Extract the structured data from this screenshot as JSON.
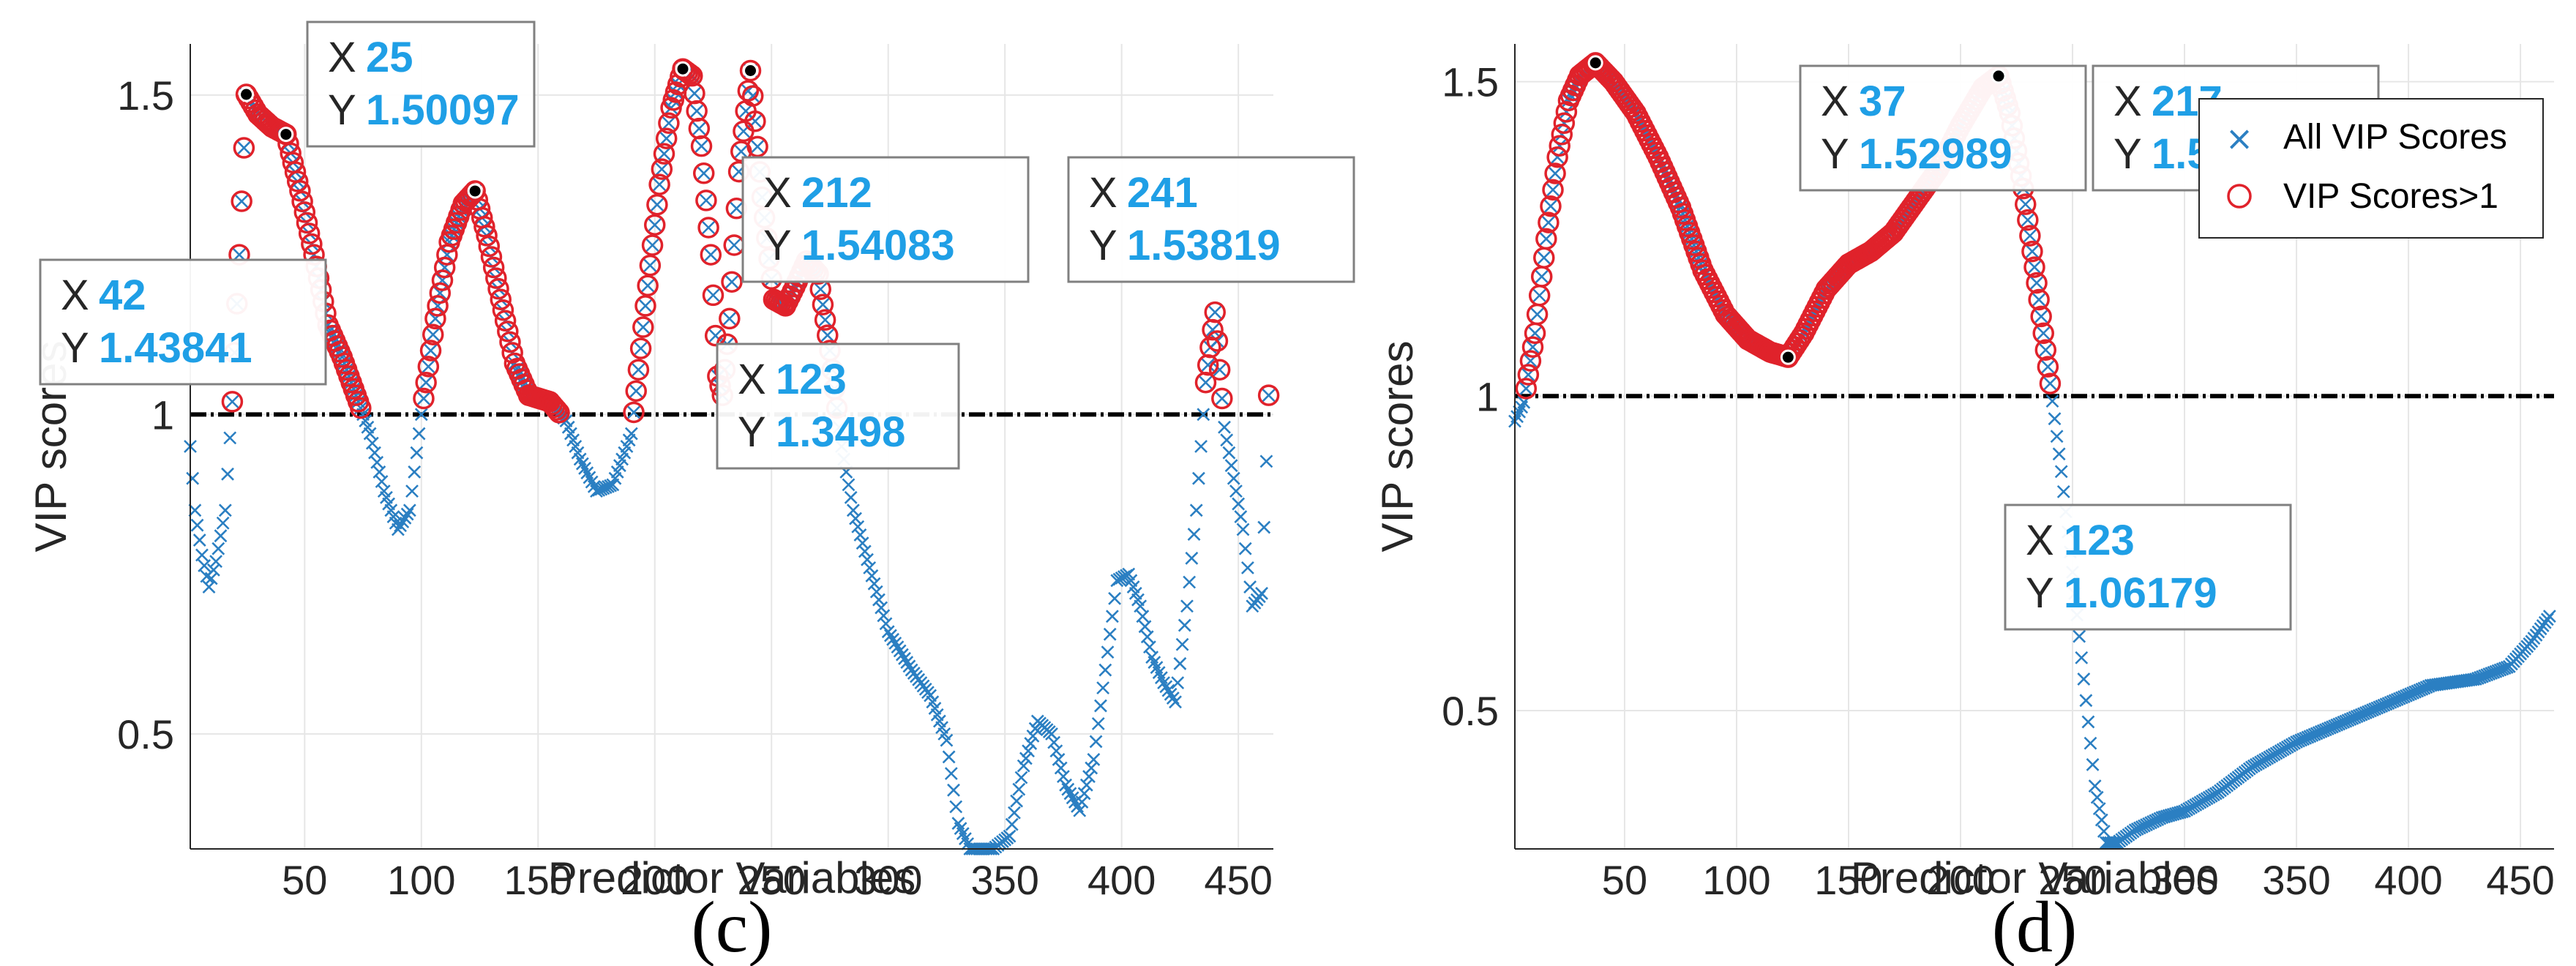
{
  "colors": {
    "all_marker": "#2b7fc2",
    "above_marker": "#e0222b",
    "threshold": "#000000",
    "datatip_value": "#1f9fe6",
    "grid": "#e6e6e6"
  },
  "chart_data": [
    {
      "panel": "(c)",
      "type": "scatter",
      "xlabel": "Predictor Variables",
      "ylabel": "VIP scores",
      "xlim": [
        1,
        465
      ],
      "ylim": [
        0.32,
        1.58
      ],
      "xticks": [
        50,
        100,
        150,
        200,
        250,
        300,
        350,
        400,
        450
      ],
      "yticks": [
        0.5,
        1,
        1.5
      ],
      "threshold": 1,
      "grid": true,
      "legend": null,
      "curve_knots": [
        [
          1,
          0.95
        ],
        [
          3,
          0.85
        ],
        [
          6,
          0.78
        ],
        [
          9,
          0.73
        ],
        [
          12,
          0.77
        ],
        [
          16,
          0.85
        ],
        [
          19,
          1.02
        ],
        [
          22,
          1.25
        ],
        [
          25,
          1.50097
        ],
        [
          30,
          1.47
        ],
        [
          36,
          1.45
        ],
        [
          42,
          1.43841
        ],
        [
          48,
          1.35
        ],
        [
          54,
          1.25
        ],
        [
          60,
          1.14
        ],
        [
          66,
          1.09
        ],
        [
          72,
          1.03
        ],
        [
          78,
          0.97
        ],
        [
          84,
          0.88
        ],
        [
          90,
          0.82
        ],
        [
          95,
          0.85
        ],
        [
          100,
          1.0
        ],
        [
          106,
          1.15
        ],
        [
          112,
          1.27
        ],
        [
          118,
          1.33
        ],
        [
          123,
          1.3498
        ],
        [
          128,
          1.28
        ],
        [
          134,
          1.18
        ],
        [
          140,
          1.08
        ],
        [
          146,
          1.03
        ],
        [
          155,
          1.02
        ],
        [
          162,
          0.99
        ],
        [
          168,
          0.93
        ],
        [
          175,
          0.88
        ],
        [
          182,
          0.89
        ],
        [
          190,
          0.97
        ],
        [
          196,
          1.17
        ],
        [
          202,
          1.36
        ],
        [
          207,
          1.48
        ],
        [
          212,
          1.54083
        ],
        [
          216,
          1.53
        ],
        [
          220,
          1.42
        ],
        [
          224,
          1.25
        ],
        [
          227,
          1.06
        ],
        [
          229,
          1.03
        ],
        [
          232,
          1.15
        ],
        [
          236,
          1.38
        ],
        [
          241,
          1.53819
        ],
        [
          246,
          1.34
        ],
        [
          251,
          1.18
        ],
        [
          256,
          1.17
        ],
        [
          260,
          1.2
        ],
        [
          265,
          1.24
        ],
        [
          270,
          1.22
        ],
        [
          275,
          1.1
        ],
        [
          280,
          0.95
        ],
        [
          285,
          0.85
        ],
        [
          292,
          0.76
        ],
        [
          300,
          0.66
        ],
        [
          310,
          0.6
        ],
        [
          318,
          0.56
        ],
        [
          325,
          0.49
        ],
        [
          330,
          0.36
        ],
        [
          335,
          0.32
        ],
        [
          345,
          0.32
        ],
        [
          352,
          0.34
        ],
        [
          358,
          0.45
        ],
        [
          364,
          0.52
        ],
        [
          370,
          0.5
        ],
        [
          376,
          0.42
        ],
        [
          382,
          0.38
        ],
        [
          388,
          0.46
        ],
        [
          393,
          0.6
        ],
        [
          398,
          0.74
        ],
        [
          403,
          0.75
        ],
        [
          408,
          0.7
        ],
        [
          413,
          0.62
        ],
        [
          418,
          0.58
        ],
        [
          423,
          0.55
        ],
        [
          428,
          0.7
        ],
        [
          432,
          0.85
        ],
        [
          436,
          1.05
        ],
        [
          440,
          1.16
        ],
        [
          444,
          0.98
        ],
        [
          448,
          0.9
        ],
        [
          452,
          0.82
        ],
        [
          456,
          0.7
        ],
        [
          460,
          0.72
        ],
        [
          463,
          1.03
        ]
      ],
      "datatips": [
        {
          "x": "25",
          "y": "1.50097"
        },
        {
          "x": "42",
          "y": "1.43841"
        },
        {
          "x": "123",
          "y": "1.3498"
        },
        {
          "x": "212",
          "y": "1.54083"
        },
        {
          "x": "241",
          "y": "1.53819"
        }
      ]
    },
    {
      "panel": "(d)",
      "type": "scatter",
      "xlabel": "Predictor Variables",
      "ylabel": "VIP scores",
      "xlim": [
        1,
        465
      ],
      "ylim": [
        0.28,
        1.56
      ],
      "xticks": [
        50,
        100,
        150,
        200,
        250,
        300,
        350,
        400,
        450
      ],
      "yticks": [
        0.5,
        1,
        1.5
      ],
      "threshold": 1,
      "grid": true,
      "legend": {
        "position": "top-right",
        "entries": [
          "All VIP Scores",
          "VIP Scores>1"
        ]
      },
      "curve_knots": [
        [
          1,
          0.96
        ],
        [
          5,
          0.99
        ],
        [
          10,
          1.1
        ],
        [
          15,
          1.25
        ],
        [
          20,
          1.38
        ],
        [
          25,
          1.47
        ],
        [
          30,
          1.51
        ],
        [
          37,
          1.52989
        ],
        [
          45,
          1.5
        ],
        [
          55,
          1.45
        ],
        [
          65,
          1.38
        ],
        [
          75,
          1.3
        ],
        [
          85,
          1.2
        ],
        [
          95,
          1.13
        ],
        [
          105,
          1.09
        ],
        [
          115,
          1.07
        ],
        [
          123,
          1.06179
        ],
        [
          130,
          1.1
        ],
        [
          140,
          1.17
        ],
        [
          150,
          1.21
        ],
        [
          160,
          1.23
        ],
        [
          170,
          1.26
        ],
        [
          180,
          1.31
        ],
        [
          190,
          1.36
        ],
        [
          200,
          1.43
        ],
        [
          210,
          1.49
        ],
        [
          217,
          1.50891
        ],
        [
          222,
          1.45
        ],
        [
          228,
          1.33
        ],
        [
          234,
          1.18
        ],
        [
          240,
          1.02
        ],
        [
          245,
          0.88
        ],
        [
          250,
          0.72
        ],
        [
          255,
          0.55
        ],
        [
          260,
          0.38
        ],
        [
          265,
          0.29
        ],
        [
          270,
          0.29
        ],
        [
          278,
          0.31
        ],
        [
          290,
          0.33
        ],
        [
          300,
          0.34
        ],
        [
          315,
          0.37
        ],
        [
          330,
          0.41
        ],
        [
          350,
          0.45
        ],
        [
          370,
          0.48
        ],
        [
          390,
          0.51
        ],
        [
          410,
          0.54
        ],
        [
          430,
          0.55
        ],
        [
          445,
          0.57
        ],
        [
          455,
          0.61
        ],
        [
          463,
          0.65
        ]
      ],
      "datatips": [
        {
          "x": "37",
          "y": "1.52989"
        },
        {
          "x": "123",
          "y": "1.06179"
        },
        {
          "x": "217",
          "y": "1.50891"
        }
      ]
    }
  ]
}
